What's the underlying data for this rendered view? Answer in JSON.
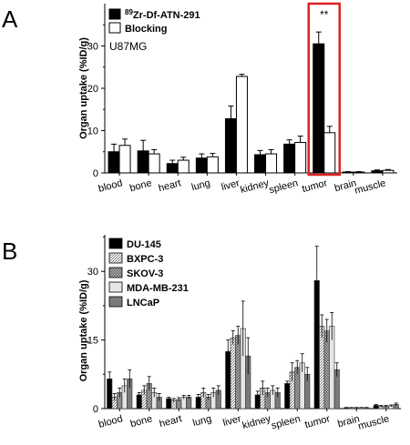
{
  "chart_data": [
    {
      "panel": "A",
      "type": "bar",
      "annotation": "U87MG",
      "ylabel": "Organ uptake (%ID/g)",
      "ylim": [
        0,
        40
      ],
      "yticks": [
        0,
        10,
        20,
        30
      ],
      "categories": [
        "blood",
        "bone",
        "heart",
        "lung",
        "liver",
        "kidney",
        "spleen",
        "tumor",
        "brain",
        "muscle"
      ],
      "legend_position": "top-left",
      "series": [
        {
          "name_sup": "89",
          "name": "Zr-Df-ATN-291",
          "fill": "#000000",
          "values": [
            5.0,
            5.2,
            2.2,
            3.5,
            12.8,
            4.3,
            6.8,
            30.5,
            0.2,
            0.5
          ],
          "errors": [
            1.8,
            2.5,
            0.8,
            1.0,
            3.0,
            1.0,
            1.0,
            2.8,
            0.1,
            0.2
          ]
        },
        {
          "name": "Blocking",
          "fill": "#ffffff",
          "values": [
            6.5,
            4.5,
            3.0,
            3.8,
            22.8,
            4.5,
            7.2,
            9.5,
            0.2,
            0.6
          ],
          "errors": [
            1.5,
            1.0,
            0.7,
            0.8,
            0.5,
            1.0,
            1.5,
            1.5,
            0.1,
            0.2
          ]
        }
      ],
      "highlight": {
        "category": "tumor",
        "color": "#e02020",
        "label": "**"
      }
    },
    {
      "panel": "B",
      "type": "bar",
      "ylabel": "Organ uptake (%ID/g)",
      "ylim": [
        0,
        38
      ],
      "yticks": [
        0,
        15,
        30
      ],
      "categories": [
        "blood",
        "bone",
        "heart",
        "lung",
        "liver",
        "kidney",
        "spleen",
        "tumor",
        "brain",
        "muscle"
      ],
      "legend_position": "top-left",
      "series": [
        {
          "name": "DU-145",
          "fill": "#000000",
          "pattern": "solid",
          "values": [
            6.5,
            3.0,
            2.2,
            2.5,
            12.5,
            3.0,
            5.5,
            28.0,
            0.2,
            0.7
          ],
          "errors": [
            1.5,
            0.5,
            0.3,
            0.6,
            2.5,
            0.8,
            0.5,
            7.5,
            0.05,
            0.2
          ]
        },
        {
          "name": "BXPC-3",
          "fill": "#ffffff",
          "pattern": "hatch",
          "values": [
            2.5,
            4.0,
            1.8,
            3.5,
            15.5,
            4.5,
            8.0,
            18.0,
            0.2,
            0.5
          ],
          "errors": [
            0.8,
            1.0,
            0.4,
            1.0,
            1.5,
            1.5,
            2.0,
            2.5,
            0.05,
            0.2
          ]
        },
        {
          "name": "SKOV-3",
          "fill": "#b8b8b8",
          "pattern": "cross",
          "values": [
            3.5,
            5.5,
            2.0,
            2.5,
            16.0,
            3.5,
            9.0,
            17.0,
            0.2,
            0.5
          ],
          "errors": [
            1.0,
            1.5,
            0.4,
            0.6,
            2.0,
            1.0,
            1.5,
            2.5,
            0.05,
            0.2
          ]
        },
        {
          "name": "MDA-MB-231",
          "fill": "#e6e6e6",
          "pattern": "solid",
          "values": [
            5.0,
            3.5,
            2.5,
            3.5,
            17.5,
            4.0,
            10.0,
            18.0,
            0.2,
            0.6
          ],
          "errors": [
            1.5,
            1.0,
            0.4,
            1.0,
            6.0,
            1.0,
            2.0,
            3.0,
            0.05,
            0.2
          ]
        },
        {
          "name": "LNCaP",
          "fill": "#7a7a7a",
          "pattern": "solid",
          "values": [
            6.5,
            2.5,
            2.5,
            4.0,
            11.5,
            3.5,
            7.5,
            8.5,
            0.2,
            0.9
          ],
          "errors": [
            2.0,
            0.8,
            0.4,
            1.0,
            4.0,
            1.0,
            1.5,
            1.5,
            0.05,
            0.3
          ]
        }
      ]
    }
  ]
}
